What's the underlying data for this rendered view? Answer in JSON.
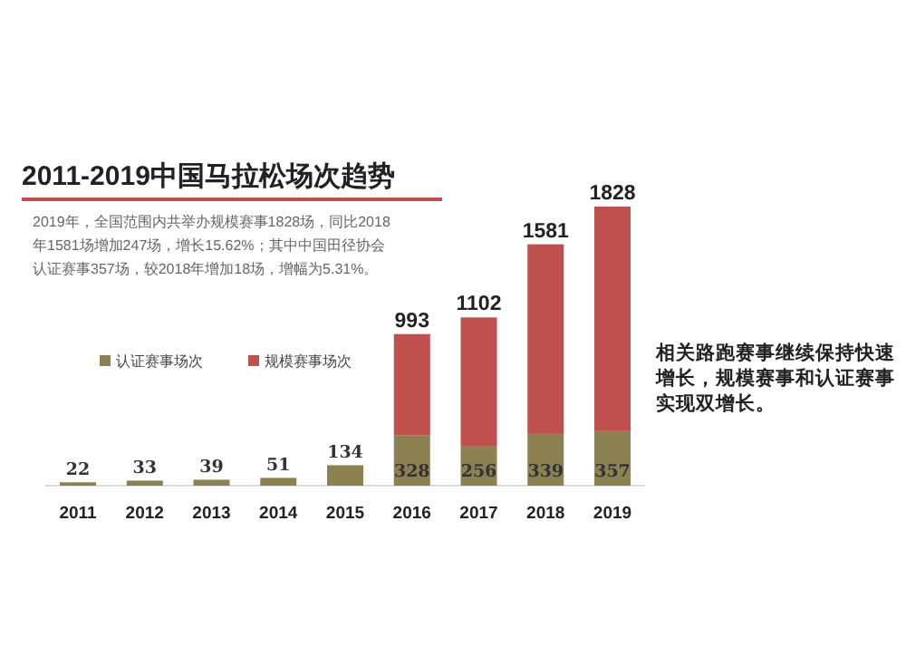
{
  "chart_data": {
    "type": "bar",
    "stacked": true,
    "title": "2011-2019中国马拉松场次趋势",
    "subtitle": "2019年，全国范围内共举办规模赛事1828场，同比2018年1581场增加247场，增长15.62%；其中中国田径协会认证赛事357场，较2018年增加18场，增幅为5.31%。",
    "categories": [
      "2011",
      "2012",
      "2013",
      "2014",
      "2015",
      "2016",
      "2017",
      "2018",
      "2019"
    ],
    "series": [
      {
        "name": "认证赛事场次",
        "color": "#8c8150",
        "values": [
          22,
          33,
          39,
          51,
          134,
          328,
          256,
          339,
          357
        ],
        "value_labels": [
          "22",
          "33",
          "39",
          "51",
          "134",
          "328",
          "256",
          "339",
          "357"
        ]
      },
      {
        "name": "规模赛事场次",
        "color": "#c0504d",
        "values": [
          null,
          null,
          null,
          null,
          null,
          665,
          846,
          1242,
          1471
        ]
      }
    ],
    "totals": [
      null,
      null,
      null,
      null,
      null,
      "993",
      "1102",
      "1581",
      "1828"
    ],
    "ylim": [
      0,
      1828
    ],
    "tick_labels": "x",
    "legend": "left",
    "annotations": [
      "相关路跑赛事继续保持快速增长，规模赛事和认证赛事实现双增长。"
    ]
  }
}
